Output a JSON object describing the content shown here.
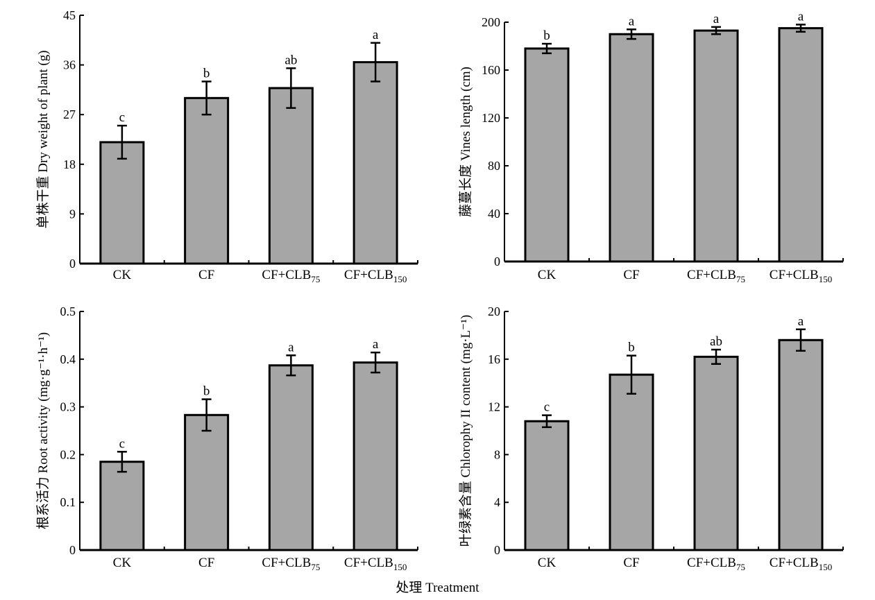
{
  "figure": {
    "xlabel": "处理 Treatment"
  },
  "chart_data": [
    {
      "type": "bar",
      "panel": "top-left",
      "categories": [
        "CK",
        "CF",
        "CF+CLB75",
        "CF+CLB150"
      ],
      "values": [
        22.0,
        30.0,
        31.8,
        36.5
      ],
      "errors": [
        3.0,
        3.0,
        3.6,
        3.5
      ],
      "significance": [
        "c",
        "b",
        "ab",
        "a"
      ],
      "ylabel": "单株干重 Dry weight of plant (g)",
      "ylim": [
        0,
        45
      ],
      "yticks": [
        0,
        9,
        18,
        27,
        36,
        45
      ],
      "bar_color": "#a6a6a6"
    },
    {
      "type": "bar",
      "panel": "top-right",
      "categories": [
        "CK",
        "CF",
        "CF+CLB75",
        "CF+CLB150"
      ],
      "values": [
        178,
        190,
        193,
        195
      ],
      "errors": [
        4,
        4,
        3,
        3
      ],
      "significance": [
        "b",
        "a",
        "a",
        "a"
      ],
      "ylabel": "藤蔓长度 Vines length (cm)",
      "ylim": [
        0,
        200
      ],
      "yticks": [
        0,
        40,
        80,
        120,
        160,
        200
      ],
      "bar_color": "#a6a6a6"
    },
    {
      "type": "bar",
      "panel": "bottom-left",
      "categories": [
        "CK",
        "CF",
        "CF+CLB75",
        "CF+CLB150"
      ],
      "values": [
        0.185,
        0.283,
        0.387,
        0.393
      ],
      "errors": [
        0.021,
        0.033,
        0.021,
        0.021
      ],
      "significance": [
        "c",
        "b",
        "a",
        "a"
      ],
      "ylabel": "根系活力 Root activity (mg·g⁻¹·h⁻¹)",
      "ylim": [
        0,
        0.5
      ],
      "yticks": [
        "0",
        "0.1",
        "0.2",
        "0.3",
        "0.4",
        "0.5"
      ],
      "bar_color": "#a6a6a6"
    },
    {
      "type": "bar",
      "panel": "bottom-right",
      "categories": [
        "CK",
        "CF",
        "CF+CLB75",
        "CF+CLB150"
      ],
      "values": [
        10.8,
        14.7,
        16.2,
        17.6
      ],
      "errors": [
        0.5,
        1.6,
        0.6,
        0.9
      ],
      "significance": [
        "c",
        "b",
        "ab",
        "a"
      ],
      "ylabel": "叶绿素含量 Chlorophy II content (mg·L⁻¹)",
      "ylim": [
        0,
        20
      ],
      "yticks": [
        0,
        4,
        8,
        12,
        16,
        20
      ],
      "bar_color": "#a6a6a6"
    }
  ]
}
